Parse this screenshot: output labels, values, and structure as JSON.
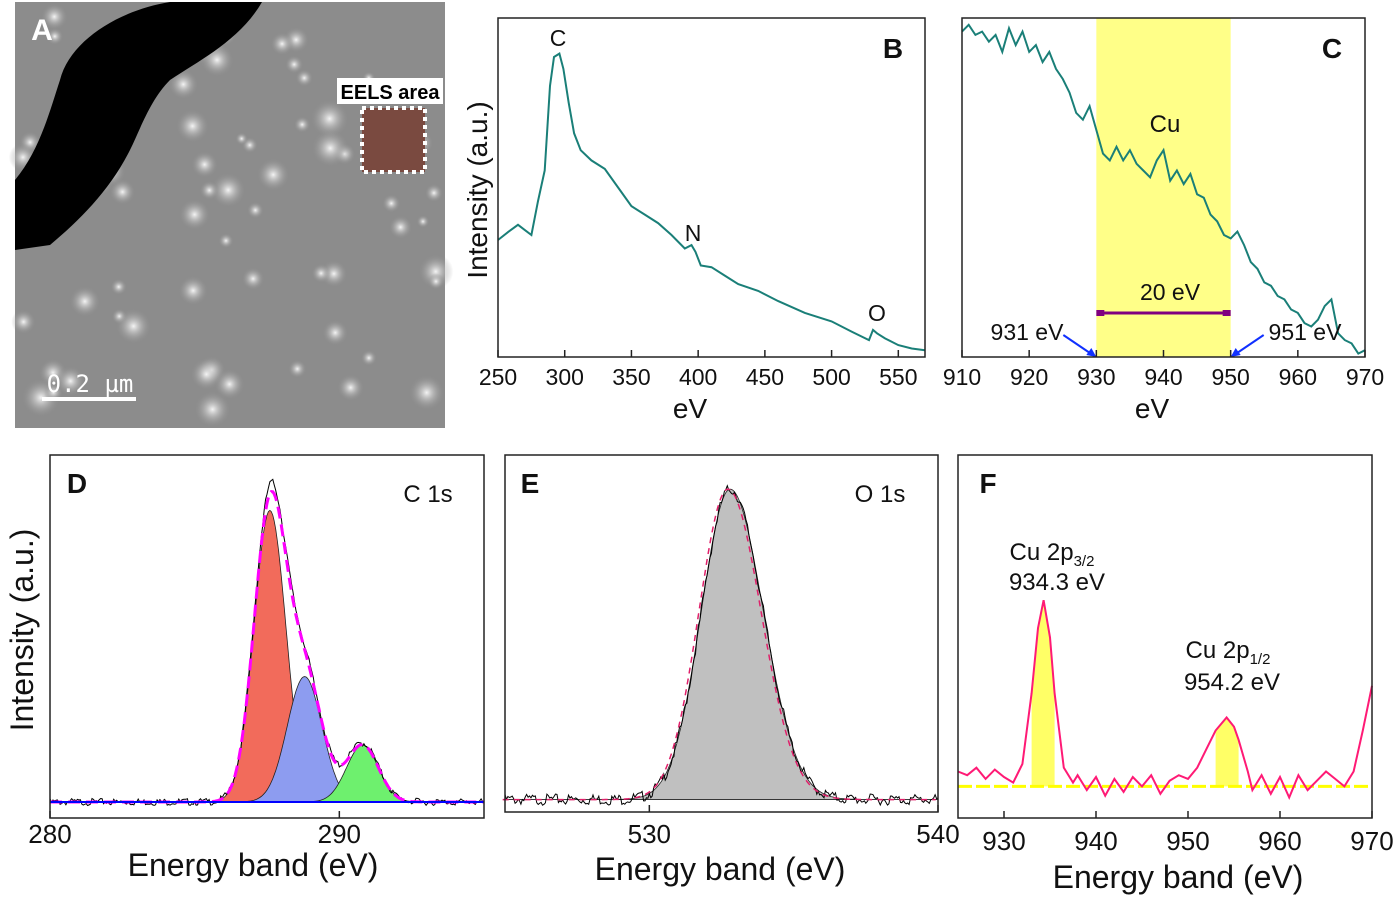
{
  "panel_a": {
    "label": "A",
    "eels_label": "EELS area",
    "scale_bar": "0.2 µm"
  },
  "chart_data": [
    {
      "id": "B",
      "type": "line",
      "label": "B",
      "xlabel": "eV",
      "ylabel": "Intensity (a.u.)",
      "xlim": [
        250,
        570
      ],
      "ylim": [
        0,
        100
      ],
      "xticks": [
        250,
        300,
        350,
        400,
        450,
        500,
        550
      ],
      "color": "#1a7f78",
      "annotations": [
        {
          "text": "C",
          "x": 295
        },
        {
          "text": "N",
          "x": 395
        },
        {
          "text": "O",
          "x": 532
        }
      ],
      "points": [
        [
          250,
          34.5
        ],
        [
          258,
          37
        ],
        [
          265,
          39
        ],
        [
          270,
          37.5
        ],
        [
          275,
          36
        ],
        [
          280,
          46
        ],
        [
          285,
          55
        ],
        [
          289,
          80
        ],
        [
          292,
          88.5
        ],
        [
          296,
          89.5
        ],
        [
          299,
          85
        ],
        [
          303,
          75
        ],
        [
          307,
          66
        ],
        [
          312,
          61
        ],
        [
          320,
          58
        ],
        [
          330,
          55.5
        ],
        [
          340,
          50
        ],
        [
          350,
          44.5
        ],
        [
          360,
          42
        ],
        [
          370,
          39.5
        ],
        [
          380,
          36
        ],
        [
          390,
          32
        ],
        [
          395,
          33
        ],
        [
          398,
          31
        ],
        [
          402,
          27
        ],
        [
          410,
          26.5
        ],
        [
          420,
          24
        ],
        [
          430,
          21.5
        ],
        [
          445,
          19.5
        ],
        [
          460,
          16.5
        ],
        [
          480,
          13
        ],
        [
          500,
          10.5
        ],
        [
          515,
          7.5
        ],
        [
          528,
          5
        ],
        [
          531,
          8
        ],
        [
          534,
          7
        ],
        [
          540,
          5.5
        ],
        [
          550,
          3.5
        ],
        [
          560,
          2.5
        ],
        [
          570,
          2
        ]
      ]
    },
    {
      "id": "C",
      "type": "line",
      "label": "C",
      "xlabel": "eV",
      "xlim": [
        910,
        970
      ],
      "ylim": [
        0,
        100
      ],
      "xticks": [
        910,
        920,
        930,
        940,
        950,
        960,
        970
      ],
      "color": "#1a7f78",
      "highlight": {
        "from": 930,
        "to": 950,
        "color": "#ffff88",
        "element_label": "Cu",
        "width_label": "20 eV"
      },
      "markers": [
        {
          "text": "931 eV",
          "x": 930
        },
        {
          "text": "951 eV",
          "x": 950
        }
      ],
      "points": [
        [
          910,
          96
        ],
        [
          911,
          98
        ],
        [
          912,
          95
        ],
        [
          913,
          96
        ],
        [
          914,
          93
        ],
        [
          915,
          95
        ],
        [
          916,
          90
        ],
        [
          917,
          97
        ],
        [
          918,
          92
        ],
        [
          919,
          96
        ],
        [
          920,
          90
        ],
        [
          921,
          92
        ],
        [
          922,
          87
        ],
        [
          923,
          90
        ],
        [
          924,
          85
        ],
        [
          925,
          82
        ],
        [
          926,
          78
        ],
        [
          927,
          72
        ],
        [
          928,
          70
        ],
        [
          929,
          74
        ],
        [
          930,
          67
        ],
        [
          931,
          60
        ],
        [
          932,
          58
        ],
        [
          933,
          62
        ],
        [
          934,
          58
        ],
        [
          935,
          61
        ],
        [
          936,
          57
        ],
        [
          937,
          55
        ],
        [
          938,
          53
        ],
        [
          939,
          58
        ],
        [
          940,
          61
        ],
        [
          941,
          52
        ],
        [
          942,
          55
        ],
        [
          943,
          51
        ],
        [
          944,
          54
        ],
        [
          945,
          48
        ],
        [
          946,
          47
        ],
        [
          947,
          42
        ],
        [
          948,
          40
        ],
        [
          949,
          36
        ],
        [
          950,
          35
        ],
        [
          951,
          37
        ],
        [
          952,
          33
        ],
        [
          953,
          28
        ],
        [
          954,
          26
        ],
        [
          955,
          22
        ],
        [
          956,
          21
        ],
        [
          957,
          18
        ],
        [
          958,
          17
        ],
        [
          959,
          14
        ],
        [
          960,
          13
        ],
        [
          961,
          10
        ],
        [
          962,
          9
        ],
        [
          963,
          11
        ],
        [
          964,
          15
        ],
        [
          965,
          17
        ],
        [
          966,
          7
        ],
        [
          967,
          5
        ],
        [
          968,
          4
        ],
        [
          969,
          1
        ],
        [
          970,
          2
        ]
      ]
    },
    {
      "id": "D",
      "type": "area",
      "label": "D",
      "title": "C 1s",
      "xlabel": "Energy band (eV)",
      "ylabel": "Intensity (a.u.)",
      "xlim": [
        280,
        295
      ],
      "ylim": [
        -5.5,
        119
      ],
      "xticks": [
        280,
        290
      ],
      "components": [
        {
          "center": 287.6,
          "height": 100,
          "sigma": 0.55,
          "color": "#f26b5b"
        },
        {
          "center": 288.8,
          "height": 43,
          "sigma": 0.6,
          "color": "#8d9cf0"
        },
        {
          "center": 290.8,
          "height": 19.5,
          "sigma": 0.55,
          "color": "#6ef06e"
        }
      ],
      "fit_color": "#ff00ff",
      "baseline_color": "#0000ff"
    },
    {
      "id": "E",
      "type": "area",
      "label": "E",
      "title": "O 1s",
      "xlabel": "Energy band (eV)",
      "xlim": [
        525,
        540
      ],
      "ylim": [
        -4,
        111
      ],
      "xticks": [
        530,
        540
      ],
      "components": [
        {
          "center": 532.8,
          "height": 100,
          "sigma_left": 1.0,
          "sigma_right": 1.15,
          "color": "#c0c0c0"
        }
      ],
      "fit_color": "#e0206a"
    },
    {
      "id": "F",
      "type": "area",
      "label": "F",
      "xlabel": "Energy band (eV)",
      "xlim": [
        925,
        970
      ],
      "ylim": [
        -17,
        178
      ],
      "xticks": [
        930,
        940,
        950,
        960,
        970
      ],
      "color": "#ff1a75",
      "fill": "#ffff66",
      "baseline_color": "#ffff00",
      "peaks": [
        {
          "name": "Cu 2p",
          "sub": "3/2",
          "energy_label": "934.3 eV",
          "center": 934.3
        },
        {
          "name": "Cu 2p",
          "sub": "1/2",
          "energy_label": "954.2 eV",
          "center": 954.2
        }
      ],
      "points": [
        [
          925,
          8
        ],
        [
          926,
          6
        ],
        [
          927,
          10
        ],
        [
          928,
          4
        ],
        [
          929,
          9
        ],
        [
          930,
          5
        ],
        [
          931,
          2
        ],
        [
          932,
          12
        ],
        [
          933,
          50
        ],
        [
          933.7,
          85
        ],
        [
          934.3,
          100
        ],
        [
          935,
          80
        ],
        [
          935.5,
          50
        ],
        [
          936.5,
          10
        ],
        [
          937.5,
          2
        ],
        [
          938,
          6
        ],
        [
          939,
          -2
        ],
        [
          940,
          5
        ],
        [
          941,
          -5
        ],
        [
          942,
          4
        ],
        [
          943,
          -3
        ],
        [
          944,
          5
        ],
        [
          945,
          0
        ],
        [
          946,
          6
        ],
        [
          947,
          -4
        ],
        [
          948,
          3
        ],
        [
          949,
          6
        ],
        [
          950,
          4
        ],
        [
          951,
          10
        ],
        [
          952,
          20
        ],
        [
          953,
          30
        ],
        [
          954.2,
          37
        ],
        [
          955,
          32
        ],
        [
          955.5,
          25
        ],
        [
          956.5,
          8
        ],
        [
          957,
          -2
        ],
        [
          958,
          6
        ],
        [
          959,
          -4
        ],
        [
          960,
          5
        ],
        [
          961,
          -6
        ],
        [
          962,
          6
        ],
        [
          963,
          -2
        ],
        [
          964,
          3
        ],
        [
          965,
          8
        ],
        [
          966,
          4
        ],
        [
          967,
          0
        ],
        [
          968,
          8
        ],
        [
          969,
          30
        ],
        [
          970,
          54
        ]
      ]
    }
  ]
}
